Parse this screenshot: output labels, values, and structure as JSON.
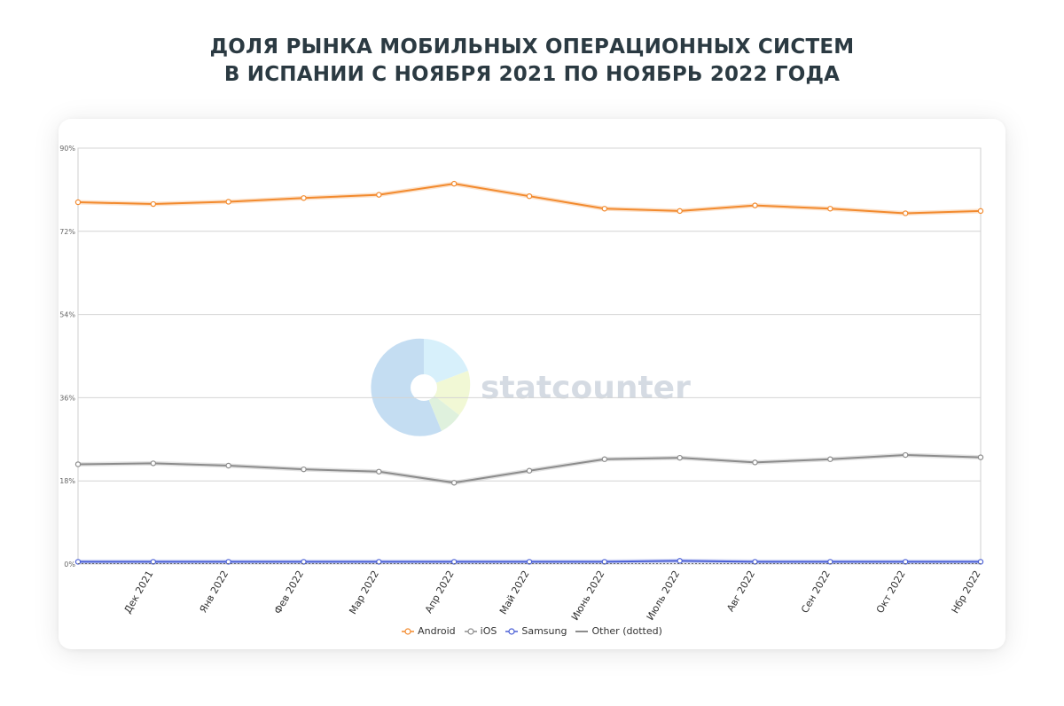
{
  "title": {
    "line1": "ДОЛЯ РЫНКА МОБИЛЬНЫХ ОПЕРАЦИОННЫХ СИСТЕМ",
    "line2": "В ИСПАНИИ С НОЯБРЯ 2021 ПО НОЯБРЬ 2022 ГОДА"
  },
  "watermark": {
    "text": "statcounter"
  },
  "chart_data": {
    "type": "line",
    "title": "ДОЛЯ РЫНКА МОБИЛЬНЫХ ОПЕРАЦИОННЫХ СИСТЕМ В ИСПАНИИ С НОЯБРЯ 2021 ПО НОЯБРЬ 2022 ГОДА",
    "x_tick_labels": [
      "",
      "Дек 2021",
      "Янв 2022",
      "Фев 2022",
      "Мар 2022",
      "Апр 2022",
      "Май 2022",
      "Июнь 2022",
      "Июль 2022",
      "Авг 2022",
      "Сен 2022",
      "Окт 2022",
      "Нбр 2022"
    ],
    "y_ticks": [
      0,
      18,
      36,
      54,
      72,
      90
    ],
    "y_tick_labels": [
      "0%",
      "18%",
      "36%",
      "54%",
      "72%",
      "90%"
    ],
    "ylim": [
      0,
      90
    ],
    "grid": true,
    "legend_position": "bottom",
    "series": [
      {
        "name": "Android",
        "color": "#f28a2e",
        "marker": "circle",
        "values": [
          78.3,
          77.9,
          78.4,
          79.2,
          79.9,
          82.3,
          79.6,
          76.9,
          76.4,
          77.6,
          76.9,
          75.9,
          76.4
        ]
      },
      {
        "name": "iOS",
        "color": "#8c8c8c",
        "marker": "circle",
        "values": [
          21.6,
          21.8,
          21.3,
          20.5,
          20.0,
          17.6,
          20.2,
          22.7,
          23.0,
          22.0,
          22.7,
          23.6,
          23.1
        ]
      },
      {
        "name": "Samsung",
        "color": "#4a5fd6",
        "marker": "circle",
        "values": [
          0.5,
          0.5,
          0.5,
          0.5,
          0.5,
          0.5,
          0.5,
          0.5,
          0.7,
          0.5,
          0.5,
          0.5,
          0.5
        ]
      },
      {
        "name": "Other (dotted)",
        "color": "#666666",
        "marker": "none",
        "dashed": true,
        "values": [
          0.1,
          0.1,
          0.1,
          0.1,
          0.1,
          0.1,
          0.1,
          0.1,
          0.1,
          0.1,
          0.1,
          0.1,
          0.1
        ]
      }
    ]
  }
}
